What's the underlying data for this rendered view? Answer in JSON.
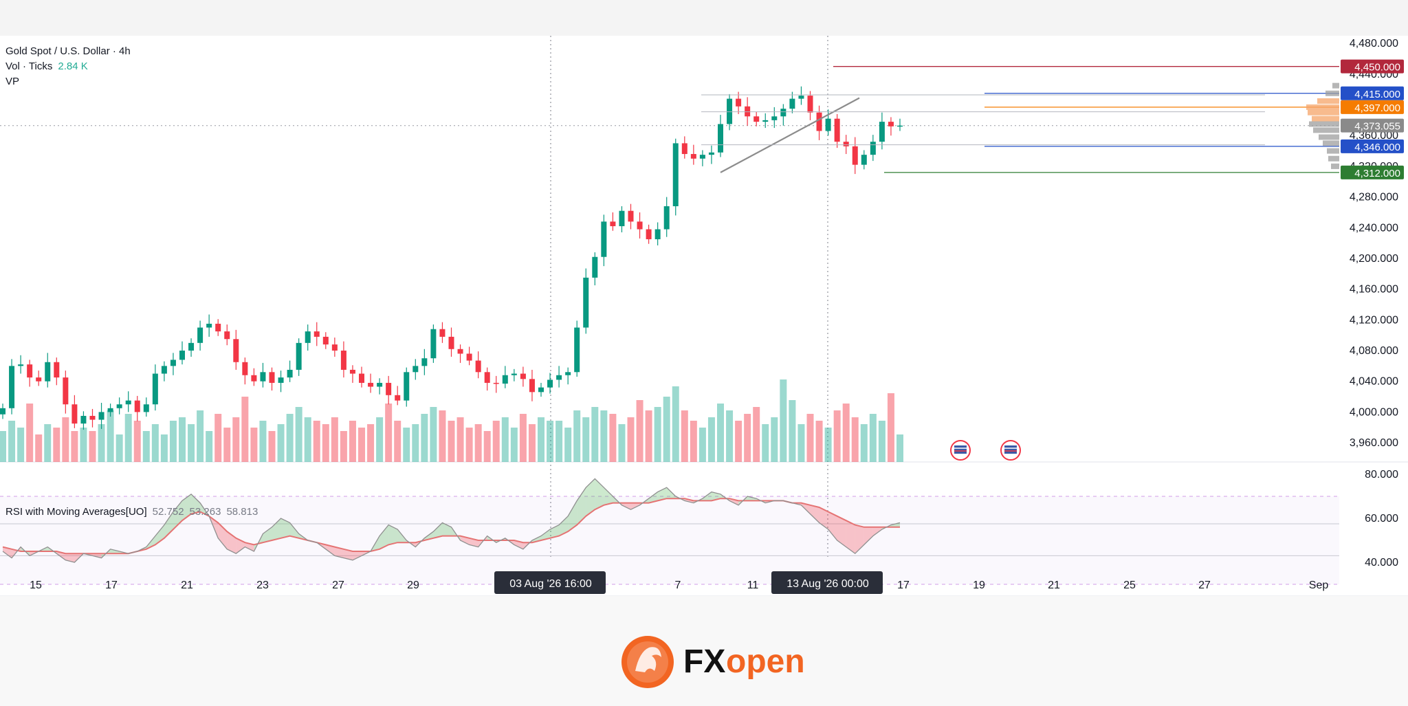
{
  "legend": {
    "symbol_line": "Gold Spot / U.S. Dollar · 4h",
    "vol_label": "Vol · Ticks",
    "vol_value": "2.84 K",
    "vp_label": "VP"
  },
  "rsi_legend": {
    "title": "RSI with Moving Averages[UO]",
    "v1": "52.752",
    "v2": "53.263",
    "v3": "58.813"
  },
  "logo_text": "FXopen",
  "colors": {
    "up": "#22ab94",
    "down": "#f23645",
    "brand": "#f26522"
  },
  "chart_data": {
    "type": "candlestick",
    "symbol": "Gold Spot / U.S. Dollar",
    "timeframe": "4h",
    "price_axis": {
      "ticks": [
        "4,480.000",
        "4,440.000",
        "4,400.000",
        "4,360.000",
        "4,320.000",
        "4,280.000",
        "4,240.000",
        "4,200.000",
        "4,160.000",
        "4,120.000",
        "4,080.000",
        "4,040.000",
        "4,000.000",
        "3,960.000"
      ],
      "range": [
        3935,
        4490
      ]
    },
    "price_labels": [
      {
        "value": "4,450.000",
        "color": "#b2283c"
      },
      {
        "value": "4,415.000",
        "color": "#2450c8"
      },
      {
        "value": "4,397.000",
        "color": "#f57c00"
      },
      {
        "value": "4,373.055",
        "color": "#8a8a8a"
      },
      {
        "value": "4,346.000",
        "color": "#2450c8"
      },
      {
        "value": "4,312.000",
        "color": "#2e7d32"
      }
    ],
    "time_axis": [
      "15",
      "17",
      "21",
      "23",
      "27",
      "29",
      "7",
      "11",
      "17",
      "19",
      "21",
      "25",
      "27",
      "Sep"
    ],
    "crosshair_labels": [
      "03 Aug '26   16:00",
      "13 Aug '26   00:00"
    ],
    "closes": [
      4005,
      4060,
      4062,
      4045,
      4040,
      4065,
      4045,
      4010,
      3985,
      3995,
      3990,
      4000,
      4005,
      4010,
      4015,
      4000,
      4010,
      4050,
      4060,
      4068,
      4080,
      4090,
      4110,
      4115,
      4105,
      4095,
      4065,
      4048,
      4040,
      4052,
      4038,
      4045,
      4055,
      4090,
      4105,
      4098,
      4088,
      4080,
      4055,
      4050,
      4038,
      4033,
      4038,
      4022,
      4015,
      4052,
      4060,
      4070,
      4108,
      4098,
      4082,
      4076,
      4067,
      4052,
      4038,
      4037,
      4048,
      4050,
      4043,
      4026,
      4032,
      4042,
      4048,
      4052,
      4110,
      4175,
      4202,
      4248,
      4242,
      4262,
      4248,
      4238,
      4225,
      4238,
      4268,
      4350,
      4336,
      4330,
      4335,
      4338,
      4375,
      4408,
      4398,
      4385,
      4378,
      4380,
      4385,
      4395,
      4408,
      4412,
      4390,
      4366,
      4382,
      4352,
      4346,
      4322,
      4335,
      4352,
      4378,
      4372,
      4373
    ],
    "volume_ticks": [
      0.9,
      1.2,
      1.0,
      1.7,
      0.8,
      1.1,
      1.0,
      1.3,
      0.9,
      1.0,
      0.9,
      1.1,
      1.5,
      0.8,
      1.4,
      1.2,
      0.9,
      1.1,
      0.8,
      1.2,
      1.3,
      1.1,
      1.5,
      0.9,
      1.4,
      1.0,
      1.3,
      1.9,
      1.0,
      1.2,
      0.9,
      1.1,
      1.4,
      1.6,
      1.3,
      1.2,
      1.1,
      1.3,
      0.9,
      1.2,
      1.0,
      1.1,
      1.3,
      1.7,
      1.2,
      1.0,
      1.1,
      1.4,
      1.6,
      1.5,
      1.2,
      1.3,
      1.0,
      1.1,
      0.9,
      1.2,
      1.3,
      1.0,
      1.4,
      1.1,
      1.3,
      1.2,
      1.2,
      1.0,
      1.5,
      1.3,
      1.6,
      1.5,
      1.4,
      1.1,
      1.3,
      1.8,
      1.5,
      1.6,
      1.9,
      2.2,
      1.5,
      1.2,
      1.0,
      1.3,
      1.7,
      1.5,
      1.2,
      1.4,
      1.6,
      1.1,
      1.3,
      2.4,
      1.8,
      1.1,
      1.4,
      1.2,
      1.0,
      1.5,
      1.7,
      1.3,
      1.1,
      1.4,
      1.2,
      2.0,
      0.8
    ],
    "rsi": {
      "ticks": [
        "80.000",
        "60.000",
        "40.000"
      ],
      "range": [
        25,
        85
      ],
      "bands": [
        70,
        57.5,
        43,
        30
      ],
      "rsi_values": [
        45,
        42,
        47,
        43,
        45,
        47,
        44,
        41,
        40,
        44,
        43,
        42,
        46,
        45,
        44,
        45,
        47,
        52,
        57,
        63,
        68,
        71,
        67,
        61,
        51,
        46,
        44,
        47,
        45,
        53,
        56,
        60,
        58,
        53,
        50,
        49,
        46,
        43,
        42,
        41,
        43,
        45,
        52,
        57,
        55,
        50,
        47,
        51,
        54,
        58,
        56,
        50,
        48,
        47,
        52,
        49,
        51,
        48,
        46,
        50,
        52,
        55,
        57,
        61,
        68,
        74,
        78,
        74,
        70,
        66,
        64,
        66,
        69,
        72,
        74,
        70,
        68,
        67,
        69,
        72,
        71,
        68,
        66,
        70,
        69,
        67,
        68,
        68,
        67,
        66,
        62,
        58,
        55,
        50,
        47,
        44,
        48,
        52,
        55,
        57,
        58
      ],
      "ma_values": [
        47,
        46,
        45,
        45,
        45,
        45,
        45,
        44,
        44,
        44,
        44,
        44,
        44,
        44,
        44,
        45,
        46,
        48,
        51,
        55,
        59,
        62,
        63,
        61,
        58,
        54,
        51,
        49,
        48,
        49,
        50,
        51,
        52,
        51,
        50,
        49,
        48,
        47,
        46,
        45,
        45,
        45,
        46,
        48,
        49,
        49,
        49,
        50,
        51,
        52,
        52,
        52,
        51,
        50,
        50,
        50,
        50,
        50,
        49,
        49,
        50,
        51,
        52,
        54,
        57,
        61,
        64,
        66,
        67,
        67,
        67,
        67,
        67,
        68,
        69,
        69,
        69,
        68,
        68,
        68,
        69,
        69,
        68,
        68,
        68,
        68,
        68,
        68,
        67,
        67,
        66,
        65,
        63,
        61,
        59,
        57,
        56,
        56,
        56,
        56,
        56
      ]
    }
  }
}
